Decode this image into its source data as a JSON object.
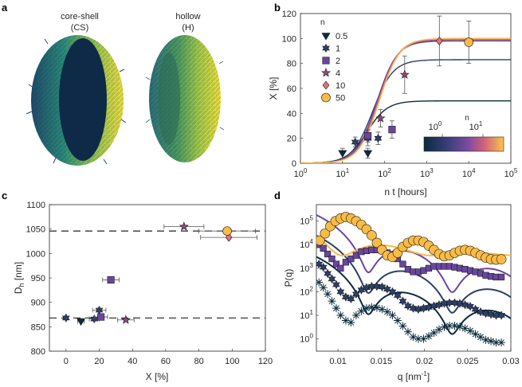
{
  "figure": {
    "panel_labels": [
      "a",
      "b",
      "c",
      "d"
    ],
    "panel_a": {
      "left_title": [
        "core-shell",
        "(CS)"
      ],
      "right_title": [
        "hollow",
        "(H)"
      ]
    }
  },
  "colors": {
    "n0_5": "#0b2c3c",
    "n1": "#2b3f6a",
    "n2": "#6a45a0",
    "n4": "#93487c",
    "n10": "#e0707c",
    "n50": "#f9bb45",
    "accent": "#f5b33a"
  },
  "chart_data": [
    {
      "panel": "b",
      "type": "line",
      "xlabel": "n t [hours]",
      "ylabel": "X [%]",
      "xscale": "log",
      "xlim": [
        1,
        100000
      ],
      "ylim": [
        0,
        120
      ],
      "xticks": [
        {
          "v": 1,
          "b": "10",
          "e": "0"
        },
        {
          "v": 10,
          "b": "10",
          "e": "1"
        },
        {
          "v": 100,
          "b": "10",
          "e": "2"
        },
        {
          "v": 1000,
          "b": "10",
          "e": "3"
        },
        {
          "v": 10000,
          "b": "10",
          "e": "4"
        },
        {
          "v": 100000,
          "b": "10",
          "e": "5"
        }
      ],
      "yticks": [
        0,
        20,
        40,
        60,
        80,
        100,
        120
      ],
      "legend_title": "n",
      "legend": [
        {
          "label": "0.5",
          "marker": "triangle-down",
          "color": "#0b2c3c"
        },
        {
          "label": "1",
          "marker": "hexagram",
          "color": "#2b3f6a"
        },
        {
          "label": "2",
          "marker": "square",
          "color": "#6a45a0"
        },
        {
          "label": "4",
          "marker": "pentagram",
          "color": "#93487c"
        },
        {
          "label": "10",
          "marker": "diamond",
          "color": "#e0707c"
        },
        {
          "label": "50",
          "marker": "circle",
          "color": "#f9bb45"
        }
      ],
      "colorbar": {
        "title": "n",
        "ticks": [
          {
            "b": "10",
            "e": "0"
          },
          {
            "b": "10",
            "e": "1"
          }
        ]
      },
      "series": [
        {
          "name": "0.5",
          "color": "#0b2c3c",
          "x": [
            10,
            40
          ],
          "y": [
            8,
            8
          ],
          "err": [
            4,
            4
          ]
        },
        {
          "name": "1",
          "color": "#2b3f6a",
          "x": [
            20,
            40,
            70
          ],
          "y": [
            17,
            20,
            20
          ],
          "err": [
            4,
            6,
            5
          ]
        },
        {
          "name": "2",
          "color": "#6a45a0",
          "x": [
            40,
            150
          ],
          "y": [
            22,
            27
          ],
          "err": [
            5,
            7
          ]
        },
        {
          "name": "4",
          "color": "#93487c",
          "x": [
            80,
            300
          ],
          "y": [
            36,
            71
          ],
          "err": [
            7,
            15
          ]
        },
        {
          "name": "10",
          "color": "#e0707c",
          "x": [
            2000
          ],
          "y": [
            98
          ],
          "err": [
            20
          ]
        },
        {
          "name": "50",
          "color": "#f9bb45",
          "x": [
            10000
          ],
          "y": [
            97
          ],
          "err": [
            17
          ]
        }
      ],
      "curves": [
        {
          "name": "0.5",
          "color": "#0b2c3c",
          "plateau": 50,
          "x50": 38
        },
        {
          "name": "1",
          "color": "#2b3f6a",
          "plateau": 83,
          "x50": 52
        },
        {
          "name": "2",
          "color": "#6a45a0",
          "plateau": 98,
          "x50": 65
        },
        {
          "name": "4",
          "color": "#93487c",
          "plateau": 99,
          "x50": 70
        },
        {
          "name": "10",
          "color": "#e0707c",
          "plateau": 100,
          "x50": 72
        },
        {
          "name": "50",
          "color": "#f9bb45",
          "plateau": 100,
          "x50": 75
        }
      ]
    },
    {
      "panel": "c",
      "type": "scatter",
      "xlabel": "X [%]",
      "ylabel_main": "D",
      "ylabel_sub": "h",
      "ylabel_unit": " [nm]",
      "xlim": [
        -10,
        120
      ],
      "ylim": [
        800,
        1100
      ],
      "xticks": [
        0,
        20,
        40,
        60,
        80,
        100,
        120
      ],
      "yticks": [
        800,
        850,
        900,
        950,
        1000,
        1050,
        1100
      ],
      "hlines": [
        868,
        1046
      ],
      "points": [
        {
          "n": "1",
          "marker": "hexagram",
          "color": "#2b3f6a",
          "x": 0,
          "y": 868,
          "xerr": 0
        },
        {
          "n": "0.5",
          "marker": "triangle-down",
          "color": "#0b2c3c",
          "x": 9,
          "y": 861,
          "xerr": 2
        },
        {
          "n": "1",
          "marker": "hexagram",
          "color": "#2b3f6a",
          "x": 17,
          "y": 866,
          "xerr": 3
        },
        {
          "n": "1",
          "marker": "hexagram",
          "color": "#2b3f6a",
          "x": 20,
          "y": 884,
          "xerr": 4
        },
        {
          "n": "2",
          "marker": "square",
          "color": "#6a45a0",
          "x": 21,
          "y": 870,
          "xerr": 4
        },
        {
          "n": "2",
          "marker": "square",
          "color": "#6a45a0",
          "x": 27,
          "y": 946,
          "xerr": 5
        },
        {
          "n": "4",
          "marker": "pentagram",
          "color": "#93487c",
          "x": 36,
          "y": 864,
          "xerr": 5
        },
        {
          "n": "4",
          "marker": "pentagram",
          "color": "#93487c",
          "x": 71,
          "y": 1055,
          "xerr": 12
        },
        {
          "n": "10",
          "marker": "diamond",
          "color": "#e0707c",
          "x": 98,
          "y": 1033,
          "xerr": 17
        },
        {
          "n": "50",
          "marker": "circle",
          "color": "#f9bb45",
          "x": 97,
          "y": 1046,
          "xerr": 17
        }
      ]
    },
    {
      "panel": "d",
      "type": "line",
      "xlabel": "q [nm",
      "xlabel_sup": "-1",
      "xlabel_end": "]",
      "ylabel": "P(q)",
      "yscale": "log",
      "xlim": [
        0.0075,
        0.03
      ],
      "ylim": [
        0.3,
        500000
      ],
      "xticks": [
        0.01,
        0.015,
        0.02,
        0.025,
        0.03
      ],
      "yticks": [
        {
          "v": 1,
          "b": "10",
          "e": "0"
        },
        {
          "v": 10,
          "b": "10",
          "e": "1"
        },
        {
          "v": 100,
          "b": "10",
          "e": "2"
        },
        {
          "v": 1000,
          "b": "10",
          "e": "3"
        },
        {
          "v": 10000,
          "b": "10",
          "e": "4"
        },
        {
          "v": 100000,
          "b": "10",
          "e": "5"
        }
      ],
      "series": [
        {
          "name": "0.5",
          "marker": "asterisk",
          "color": "#0b2c3c",
          "scale": 1,
          "shape": "cs",
          "x": [
            0.0078,
            0.0083,
            0.0088,
            0.0093,
            0.0098,
            0.0103,
            0.0109,
            0.0115,
            0.0121,
            0.0127,
            0.0133,
            0.0139,
            0.0145,
            0.0151,
            0.0157,
            0.0163,
            0.0169,
            0.0175,
            0.0181,
            0.0187,
            0.0193,
            0.0199,
            0.0205,
            0.0211,
            0.0217,
            0.0223,
            0.0229,
            0.0235,
            0.0241,
            0.0247,
            0.0253,
            0.0259,
            0.0265,
            0.0271,
            0.0277,
            0.0283,
            0.0289
          ],
          "y": [
            250,
            150,
            80,
            40,
            20,
            10,
            6,
            5,
            10,
            15,
            20,
            22,
            21,
            18,
            14,
            10,
            6,
            3.5,
            2,
            1.2,
            1.0,
            1.0,
            1.3,
            1.8,
            2.5,
            3.2,
            3.6,
            3.6,
            3.3,
            2.8,
            2.2,
            1.6,
            1.2,
            0.9,
            0.8,
            0.7,
            0.7
          ]
        },
        {
          "name": "1",
          "marker": "hexagram",
          "color": "#2b3f6a",
          "scale": 8,
          "shape": "cs",
          "x": [
            0.0078,
            0.0083,
            0.0088,
            0.0093,
            0.0098,
            0.0103,
            0.0109,
            0.0115,
            0.0121,
            0.0127,
            0.0133,
            0.0139,
            0.0145,
            0.0151,
            0.0157,
            0.0163,
            0.0169,
            0.0175,
            0.0181,
            0.0187,
            0.0193,
            0.0199,
            0.0205,
            0.0211,
            0.0217,
            0.0223,
            0.0229,
            0.0235,
            0.0241,
            0.0247,
            0.0253,
            0.0259,
            0.0265,
            0.0271,
            0.0277,
            0.0283,
            0.0289
          ],
          "y": [
            1500,
            1100,
            600,
            350,
            200,
            100,
            60,
            50,
            80,
            120,
            150,
            170,
            170,
            160,
            130,
            100,
            70,
            40,
            25,
            20,
            18,
            20,
            22,
            25,
            28,
            32,
            34,
            34,
            32,
            28,
            24,
            18,
            14,
            12,
            11,
            10,
            10
          ]
        },
        {
          "name": "2",
          "marker": "square",
          "color": "#6a45a0",
          "scale": 60,
          "shape": "cs",
          "x": [
            0.0078,
            0.0083,
            0.0088,
            0.0093,
            0.0098,
            0.0103,
            0.0109,
            0.0115,
            0.0121,
            0.0127,
            0.0133,
            0.0139,
            0.0145,
            0.0151,
            0.0157,
            0.0163,
            0.0169,
            0.0175,
            0.0181,
            0.0187,
            0.0193,
            0.0199,
            0.0205,
            0.0211,
            0.0217,
            0.0223,
            0.0229,
            0.0235,
            0.0241,
            0.0247,
            0.0253,
            0.0259,
            0.0265,
            0.0271,
            0.0277,
            0.0283,
            0.0289
          ],
          "y": [
            10000,
            7000,
            4000,
            2500,
            1500,
            1000,
            1800,
            2500,
            3500,
            5000,
            5500,
            6000,
            6000,
            5500,
            4500,
            3500,
            2500,
            1500,
            900,
            700,
            700,
            800,
            1000,
            1200,
            1200,
            1200,
            1200,
            1100,
            1000,
            900,
            800,
            700,
            600,
            500,
            450,
            420,
            420
          ]
        },
        {
          "name": "50",
          "marker": "circle",
          "color": "#f9bb45",
          "scale": 400,
          "shape": "hollow",
          "x": [
            0.0079,
            0.0085,
            0.0091,
            0.0097,
            0.0103,
            0.0109,
            0.0115,
            0.0121,
            0.0127,
            0.0133,
            0.0139,
            0.0145,
            0.0151,
            0.0157,
            0.0163,
            0.0169,
            0.0175,
            0.0181,
            0.0187,
            0.0193,
            0.0199,
            0.0205,
            0.0211,
            0.0217,
            0.0223,
            0.0229,
            0.0235,
            0.0241,
            0.0247,
            0.0253,
            0.0259,
            0.0265,
            0.0271,
            0.0277,
            0.0283,
            0.0289
          ],
          "y": [
            15000,
            30000,
            60000,
            100000,
            130000,
            150000,
            130000,
            100000,
            70000,
            45000,
            25000,
            12000,
            6000,
            3500,
            3000,
            4500,
            8000,
            12000,
            15000,
            15000,
            13000,
            9000,
            6000,
            4000,
            3200,
            3500,
            4500,
            5500,
            6000,
            5500,
            4500,
            3500,
            2800,
            2400,
            2300,
            2400
          ]
        }
      ]
    }
  ]
}
